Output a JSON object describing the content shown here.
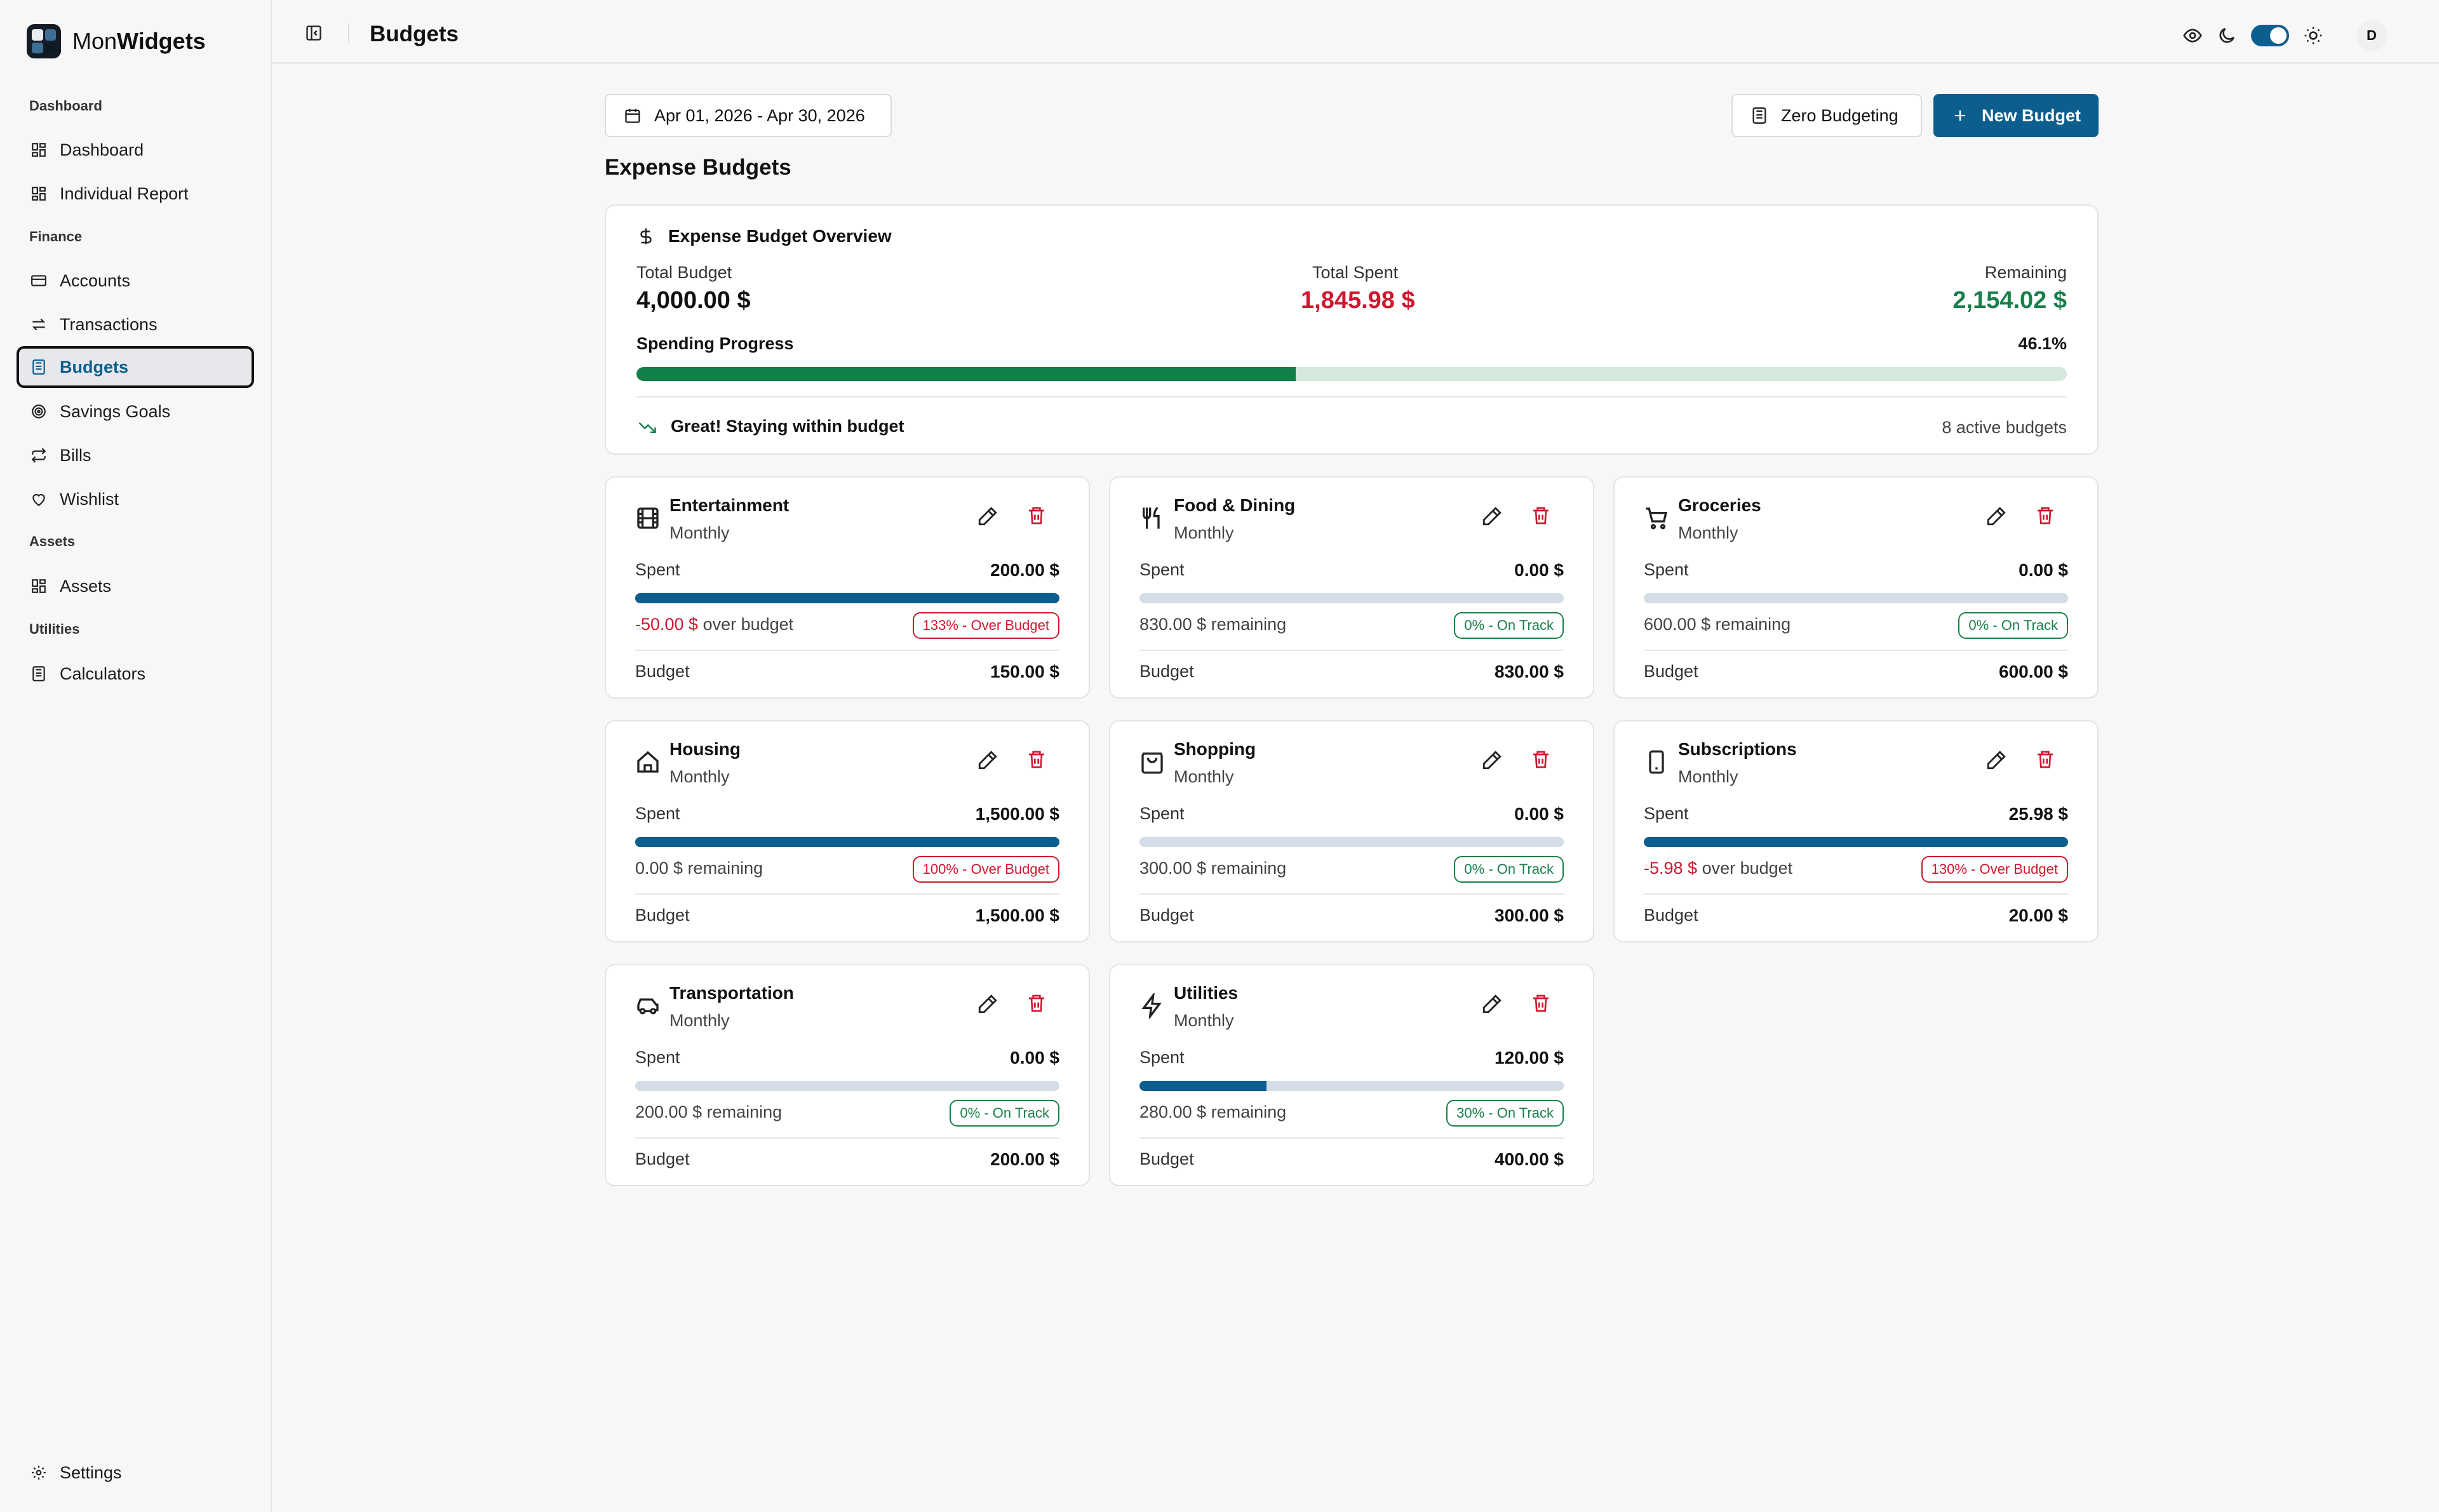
{
  "brand": {
    "prefix": "Mon",
    "bold": "Widgets"
  },
  "sidebar": {
    "sections": [
      "Dashboard",
      "Finance",
      "Assets",
      "Utilities"
    ],
    "items": [
      {
        "label": "Dashboard",
        "icon": "grid-icon"
      },
      {
        "label": "Individual Report",
        "icon": "grid-icon"
      },
      {
        "label": "Accounts",
        "icon": "wallet-icon"
      },
      {
        "label": "Transactions",
        "icon": "arrows-icon"
      },
      {
        "label": "Budgets",
        "icon": "calculator-icon",
        "active": true
      },
      {
        "label": "Savings Goals",
        "icon": "target-icon"
      },
      {
        "label": "Bills",
        "icon": "repeat-icon"
      },
      {
        "label": "Wishlist",
        "icon": "heart-icon"
      },
      {
        "label": "Assets",
        "icon": "grid-icon"
      },
      {
        "label": "Calculators",
        "icon": "calculator-icon"
      }
    ],
    "settings": "Settings"
  },
  "header": {
    "title": "Budgets",
    "avatar": "D"
  },
  "toolbar": {
    "date_range": "Apr 01, 2026 - Apr 30, 2026",
    "zero_budgeting": "Zero Budgeting",
    "new_budget": "New Budget"
  },
  "section_title": "Expense Budgets",
  "overview": {
    "title": "Expense Budget Overview",
    "total_budget_label": "Total Budget",
    "total_budget": "4,000.00 $",
    "total_spent_label": "Total Spent",
    "total_spent": "1,845.98 $",
    "remaining_label": "Remaining",
    "remaining": "2,154.02 $",
    "progress_label": "Spending Progress",
    "progress_text": "46.1%",
    "progress": 0.461,
    "status": "Great! Staying within budget",
    "active_count": "8 active budgets"
  },
  "budgets": [
    {
      "name": "Entertainment",
      "period": "Monthly",
      "spent_label": "Spent",
      "spent": "200.00 $",
      "amount_text": "-50.00 $",
      "status_text": " over budget",
      "over": true,
      "badge": "133% - Over Budget",
      "progress": 1.0,
      "budget_label": "Budget",
      "budget": "150.00 $",
      "icon": "film-icon"
    },
    {
      "name": "Food & Dining",
      "period": "Monthly",
      "spent_label": "Spent",
      "spent": "0.00 $",
      "amount_text": "",
      "status_text": "830.00 $ remaining",
      "over": false,
      "badge": "0% - On Track",
      "progress": 0.0,
      "budget_label": "Budget",
      "budget": "830.00 $",
      "icon": "utensils-icon"
    },
    {
      "name": "Groceries",
      "period": "Monthly",
      "spent_label": "Spent",
      "spent": "0.00 $",
      "amount_text": "",
      "status_text": "600.00 $ remaining",
      "over": false,
      "badge": "0% - On Track",
      "progress": 0.0,
      "budget_label": "Budget",
      "budget": "600.00 $",
      "icon": "cart-icon"
    },
    {
      "name": "Housing",
      "period": "Monthly",
      "spent_label": "Spent",
      "spent": "1,500.00 $",
      "amount_text": "",
      "status_text": "0.00 $ remaining",
      "over": true,
      "badge": "100% - Over Budget",
      "progress": 1.0,
      "budget_label": "Budget",
      "budget": "1,500.00 $",
      "icon": "home-icon"
    },
    {
      "name": "Shopping",
      "period": "Monthly",
      "spent_label": "Spent",
      "spent": "0.00 $",
      "amount_text": "",
      "status_text": "300.00 $ remaining",
      "over": false,
      "badge": "0% - On Track",
      "progress": 0.0,
      "budget_label": "Budget",
      "budget": "300.00 $",
      "icon": "bag-icon"
    },
    {
      "name": "Subscriptions",
      "period": "Monthly",
      "spent_label": "Spent",
      "spent": "25.98 $",
      "amount_text": "-5.98 $",
      "status_text": " over budget",
      "over": true,
      "badge": "130% - Over Budget",
      "progress": 1.0,
      "budget_label": "Budget",
      "budget": "20.00 $",
      "icon": "phone-icon"
    },
    {
      "name": "Transportation",
      "period": "Monthly",
      "spent_label": "Spent",
      "spent": "0.00 $",
      "amount_text": "",
      "status_text": "200.00 $ remaining",
      "over": false,
      "badge": "0% - On Track",
      "progress": 0.0,
      "budget_label": "Budget",
      "budget": "200.00 $",
      "icon": "car-icon"
    },
    {
      "name": "Utilities",
      "period": "Monthly",
      "spent_label": "Spent",
      "spent": "120.00 $",
      "amount_text": "",
      "status_text": "280.00 $ remaining",
      "over": false,
      "badge": "30% - On Track",
      "progress": 0.3,
      "budget_label": "Budget",
      "budget": "400.00 $",
      "icon": "bolt-icon"
    }
  ],
  "colors": {
    "accent": "#0c5e8f",
    "danger": "#d1172f",
    "success": "#1a7f4b"
  }
}
